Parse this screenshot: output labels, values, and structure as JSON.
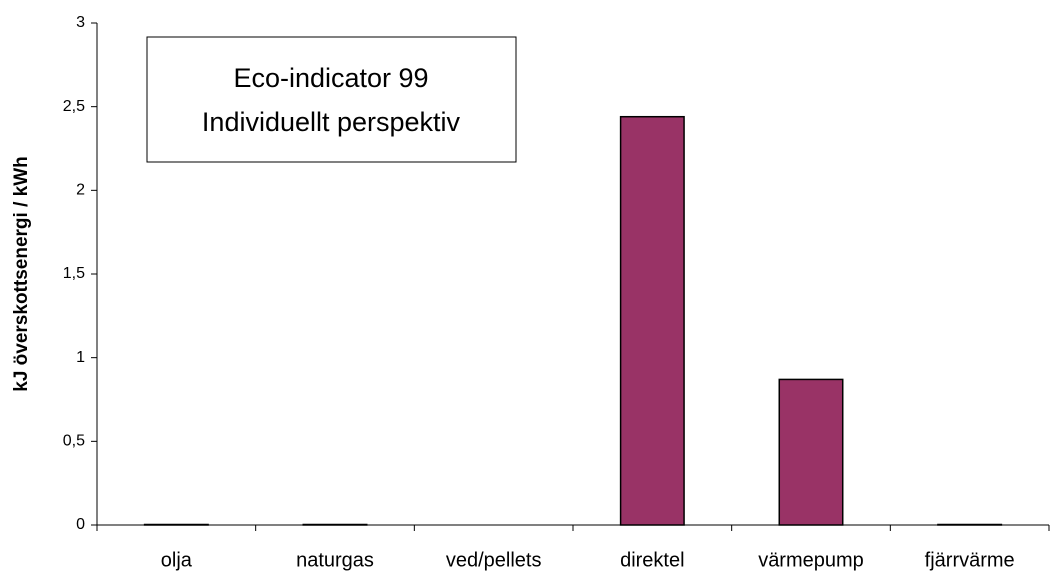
{
  "chart_data": {
    "type": "bar",
    "title": "Eco-indicator 99",
    "subtitle": "Individuellt perspektiv",
    "y_label": "kJ överskottsenergi / kWh",
    "categories": [
      "olja",
      "naturgas",
      "ved/pellets",
      "direktel",
      "värmepump",
      "fjärrvärme"
    ],
    "values": [
      0.003,
      0.003,
      0,
      2.44,
      0.87,
      0.003
    ],
    "color": "#993366",
    "ylim": [
      0,
      3
    ],
    "yticks": [
      0,
      {
        "value": 0.5,
        "label": "0,5"
      },
      1,
      {
        "value": 1.5,
        "label": "1,5"
      },
      2,
      {
        "value": 2.5,
        "label": "2,5"
      },
      3
    ],
    "grid": false
  }
}
